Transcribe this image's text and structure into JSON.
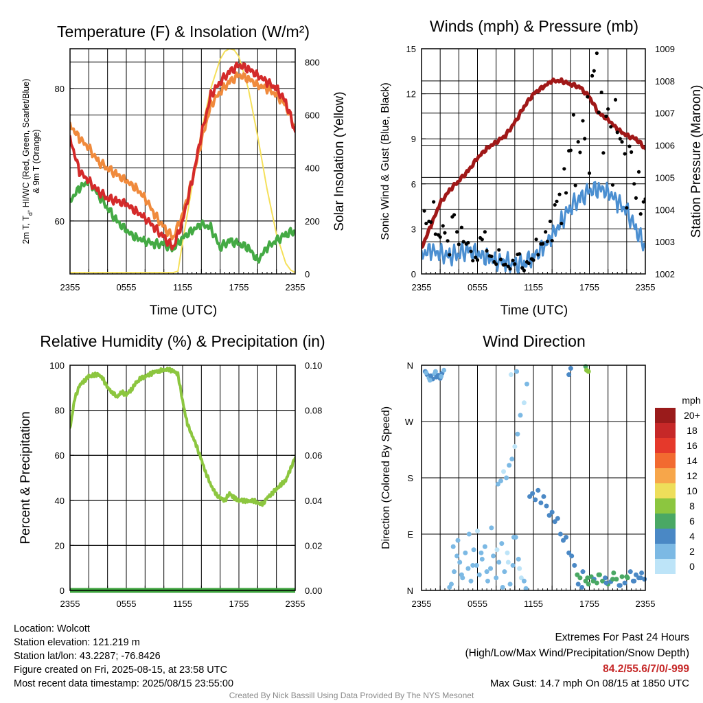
{
  "x_tick_labels": [
    "2355",
    "0555",
    "1155",
    "1755",
    "2355"
  ],
  "chart_data": [
    {
      "type": "line",
      "title": "Temperature (F) & Insolation (W/m²)",
      "xlabel": "Time (UTC)",
      "ylabel": "2m T, Td, HI/WC (Red, Green, Scarlet/Blue) & 9m T (Orange)",
      "ylabel_line1": "2m T, T",
      "ylabel_sub": "d",
      "ylabel_line1_rest": ", HI/WC (Red, Green, Scarlet/Blue)",
      "ylabel_line2": "& 9m T (Orange)",
      "y2label": "Solar Insolation (Yellow)",
      "x_range_hours": [
        0,
        24
      ],
      "ylim": [
        52,
        86
      ],
      "y_ticks": [
        60,
        70,
        80
      ],
      "y_tick_labels": [
        "60",
        "",
        "80"
      ],
      "y2lim": [
        0,
        850
      ],
      "y2_ticks": [
        0,
        200,
        400,
        600,
        800
      ],
      "series": [
        {
          "color": "#f08a3c",
          "axis": "left",
          "x": [
            0,
            1,
            2,
            3,
            4,
            5,
            6,
            7,
            8,
            9,
            10,
            11,
            12,
            13,
            14,
            15,
            16,
            17,
            18,
            19,
            20,
            21,
            22,
            23,
            24
          ],
          "values": [
            74.5,
            72.5,
            71,
            69,
            68,
            67,
            66,
            65,
            63.5,
            61,
            59,
            57.5,
            61,
            66,
            72,
            77.5,
            79.5,
            81,
            82,
            81.5,
            80.5,
            80,
            79,
            77.5,
            74
          ]
        },
        {
          "color": "#d42a2a",
          "axis": "left",
          "x": [
            0,
            1,
            2,
            3,
            4,
            5,
            6,
            7,
            8,
            9,
            10,
            11,
            12,
            13,
            14,
            15,
            16,
            17,
            18,
            19,
            20,
            21,
            22,
            23,
            24
          ],
          "values": [
            72.5,
            67.5,
            66,
            64.5,
            63.5,
            63,
            62.5,
            61.5,
            60.5,
            59,
            57.5,
            56,
            60,
            66,
            73,
            79,
            81,
            82.5,
            83.5,
            83,
            82,
            81,
            80,
            78,
            73.5
          ]
        },
        {
          "color": "#44aa44",
          "axis": "left",
          "x": [
            0,
            1,
            2,
            3,
            4,
            5,
            6,
            7,
            8,
            9,
            10,
            11,
            12,
            13,
            14,
            15,
            16,
            17,
            18,
            19,
            20,
            21,
            22,
            23,
            24
          ],
          "values": [
            63,
            65,
            66,
            64,
            62,
            60,
            58.5,
            57.5,
            57,
            56.5,
            56.5,
            55.8,
            57.5,
            58.5,
            59.5,
            59,
            56,
            57,
            56.5,
            56,
            54,
            56,
            57,
            58,
            58.5
          ]
        },
        {
          "color": "#f5e05a",
          "axis": "right",
          "x": [
            0,
            11,
            11.5,
            12,
            13,
            14,
            15,
            16,
            16.5,
            17,
            17.5,
            18,
            19,
            20,
            21,
            22,
            23,
            23.5,
            24
          ],
          "values": [
            5,
            5,
            10,
            120,
            330,
            540,
            700,
            810,
            840,
            850,
            845,
            820,
            700,
            520,
            320,
            150,
            40,
            15,
            5
          ]
        }
      ]
    },
    {
      "type": "line",
      "title": "Winds (mph) & Pressure (mb)",
      "xlabel": "Time (UTC)",
      "ylabel": "Sonic Wind & Gust (Blue, Black)",
      "y2label": "Station Pressure (Maroon)",
      "x_range_hours": [
        0,
        24
      ],
      "ylim": [
        0,
        15
      ],
      "y_ticks": [
        0,
        3,
        6,
        9,
        12,
        15
      ],
      "y2lim": [
        1002,
        1009
      ],
      "y2_ticks": [
        1002,
        1003,
        1004,
        1005,
        1006,
        1007,
        1008,
        1009
      ],
      "series": [
        {
          "color": "#4b8fd1",
          "axis": "left",
          "x": [
            0,
            1,
            2,
            3,
            4,
            5,
            6,
            7,
            8,
            9,
            10,
            11,
            12,
            13,
            14,
            15,
            16,
            17,
            18,
            19,
            20,
            21,
            22,
            23,
            24
          ],
          "values": [
            1.3,
            1.6,
            1.3,
            1.2,
            1.4,
            1.6,
            1.3,
            1.1,
            0.9,
            0.8,
            0.6,
            0.7,
            1.2,
            1.7,
            2.5,
            3.5,
            4.5,
            5.0,
            5.5,
            5.7,
            5.5,
            4.8,
            4.2,
            3.0,
            1.8
          ]
        },
        {
          "color": "#a01818",
          "axis": "right",
          "x": [
            0,
            1,
            2,
            3,
            4,
            5,
            6,
            7,
            8,
            9,
            10,
            11,
            12,
            13,
            14,
            15,
            16,
            17,
            18,
            19,
            20,
            21,
            22,
            23,
            24
          ],
          "values": [
            1002.8,
            1003.5,
            1004.2,
            1004.6,
            1004.9,
            1005.2,
            1005.6,
            1005.9,
            1006.1,
            1006.3,
            1006.7,
            1007.2,
            1007.6,
            1007.8,
            1008.0,
            1008.0,
            1007.9,
            1007.8,
            1007.5,
            1007.0,
            1006.8,
            1006.5,
            1006.3,
            1006.2,
            1005.9
          ]
        },
        {
          "name": "gust",
          "style": "dots",
          "color": "#000000",
          "axis": "left",
          "x": [
            0.3,
            0.8,
            1.3,
            1.8,
            2.3,
            2.8,
            3.3,
            3.8,
            4.3,
            4.8,
            5.3,
            5.8,
            6.3,
            6.8,
            7.3,
            7.8,
            8.3,
            8.8,
            9.3,
            9.8,
            10.3,
            10.8,
            11.3,
            11.8,
            12.3,
            12.8,
            13.3,
            13.8,
            14.3,
            14.8,
            15.3,
            15.8,
            16.3,
            16.8,
            17.3,
            17.8,
            18.3,
            18.8,
            19.3,
            19.8,
            20.3,
            20.8,
            21.3,
            21.8,
            22.3,
            22.8,
            23.3,
            23.8
          ],
          "values": [
            4.2,
            3.5,
            4.8,
            2.6,
            3.2,
            2.2,
            3.8,
            2.8,
            3.1,
            2.0,
            1.5,
            1.1,
            2.4,
            2.8,
            1.2,
            0.8,
            1.6,
            0.6,
            0.5,
            0.9,
            1.3,
            0.4,
            0.8,
            1.0,
            2.3,
            2.0,
            2.8,
            3.5,
            4.6,
            5.3,
            7.0,
            8.2,
            10.6,
            8.8,
            10.2,
            11.8,
            13.2,
            14.7,
            12.1,
            10.5,
            9.8,
            11.6,
            9.0,
            8.0,
            8.5,
            6.0,
            6.8,
            4.8
          ]
        }
      ]
    },
    {
      "type": "line",
      "title": "Relative Humidity (%) & Precipitation (in)",
      "xlabel": "",
      "ylabel": "Percent & Precipitation",
      "x_range_hours": [
        0,
        24
      ],
      "ylim": [
        0,
        100
      ],
      "y_ticks": [
        0,
        20,
        40,
        60,
        80,
        100
      ],
      "y2lim": [
        0,
        0.1
      ],
      "y2_ticks": [
        "0.00",
        "0.02",
        "0.04",
        "0.06",
        "0.08",
        "0.10"
      ],
      "series": [
        {
          "color": "#8cc63f",
          "axis": "left",
          "x": [
            0,
            0.5,
            1,
            1.5,
            2,
            2.5,
            3,
            3.5,
            4,
            4.5,
            5,
            5.5,
            6,
            6.5,
            7,
            7.5,
            8,
            8.5,
            9,
            9.5,
            10,
            10.5,
            11,
            11.5,
            12,
            12.5,
            13,
            13.5,
            14,
            14.5,
            15,
            15.5,
            16,
            16.5,
            17,
            17.5,
            18,
            18.5,
            19,
            19.5,
            20,
            20.5,
            21,
            21.5,
            22,
            22.5,
            23,
            23.5,
            24
          ],
          "values": [
            72,
            85,
            91,
            93,
            95,
            95.5,
            96,
            94,
            90,
            88,
            86,
            88,
            87,
            89,
            92,
            94,
            95,
            96,
            97,
            97.5,
            98,
            98,
            97.5,
            96,
            84,
            74,
            69,
            64,
            58,
            52,
            47,
            43,
            41,
            40,
            43,
            41,
            40,
            40,
            39.5,
            40,
            39,
            38,
            41,
            43,
            45,
            47,
            49,
            54,
            59
          ]
        },
        {
          "color": "#3da33d",
          "axis": "right",
          "width": 7,
          "x": [
            0,
            24
          ],
          "values": [
            0,
            0
          ]
        }
      ]
    },
    {
      "type": "scatter",
      "title": "Wind Direction",
      "ylabel": "Direction (Colored By Speed)",
      "x_range_hours": [
        0,
        24
      ],
      "y_ticks": [
        "N",
        "E",
        "S",
        "W",
        "N"
      ],
      "ylim_deg": [
        0,
        360
      ],
      "colorbar": {
        "unit": "mph",
        "labels": [
          "20+",
          "18",
          "16",
          "14",
          "12",
          "10",
          "8",
          "6",
          "4",
          "2",
          "0"
        ],
        "colors": [
          "#9a1b1b",
          "#c62828",
          "#e5392b",
          "#f26a30",
          "#f7a64a",
          "#eede5a",
          "#8cc63f",
          "#4aa864",
          "#4a88c5",
          "#7cb9e4",
          "#bde4f8"
        ]
      },
      "points": {
        "x": [
          0.4,
          0.6,
          0.8,
          1.0,
          1.2,
          1.4,
          1.6,
          1.8,
          2.0,
          2.2,
          2.4,
          0.5,
          0.9,
          1.5,
          2.1,
          3.2,
          3.5,
          3.8,
          4.1,
          4.4,
          4.7,
          5.0,
          5.3,
          5.6,
          5.9,
          6.2,
          6.5,
          6.8,
          7.1,
          7.4,
          7.7,
          8.0,
          8.3,
          8.6,
          8.9,
          9.2,
          9.5,
          9.8,
          10.1,
          10.4,
          10.7,
          11.0,
          3.0,
          3.4,
          3.9,
          4.3,
          5.1,
          5.5,
          6.0,
          6.4,
          7.0,
          7.5,
          8.1,
          8.7,
          9.3,
          9.9,
          10.5,
          11.2,
          8.2,
          8.5,
          8.8,
          9.1,
          9.4,
          9.7,
          10.0,
          10.3,
          10.6,
          11.0,
          11.3,
          10.2,
          9.6,
          11.6,
          11.9,
          12.2,
          12.5,
          12.8,
          13.1,
          13.4,
          13.7,
          14.0,
          14.3,
          14.6,
          14.9,
          15.2,
          15.5,
          15.8,
          16.1,
          16.4,
          16.7,
          17.0,
          17.3,
          17.6,
          17.9,
          18.2,
          18.5,
          18.8,
          19.1,
          19.4,
          19.7,
          20.0,
          20.3,
          20.6,
          20.9,
          21.2,
          21.5,
          21.8,
          22.1,
          22.4,
          22.7,
          23.0,
          23.3,
          23.6,
          23.9,
          16.8,
          17.2,
          17.8,
          18.4,
          19.0,
          19.8,
          20.5,
          21.3,
          22.0,
          22.8,
          23.5,
          15.8,
          16.0,
          17.6,
          17.9,
          17.7
        ],
        "dir": [
          350,
          345,
          340,
          343,
          338,
          346,
          341,
          344,
          339,
          347,
          352,
          348,
          336,
          350,
          342,
          10,
          30,
          55,
          45,
          20,
          60,
          35,
          15,
          65,
          40,
          25,
          50,
          70,
          15,
          35,
          55,
          20,
          45,
          75,
          30,
          60,
          10,
          40,
          85,
          50,
          20,
          15,
          5,
          70,
          80,
          25,
          90,
          40,
          95,
          60,
          30,
          100,
          65,
          5,
          45,
          85,
          35,
          3,
          170,
          175,
          190,
          180,
          200,
          210,
          230,
          250,
          280,
          300,
          330,
          350,
          345,
          150,
          155,
          145,
          160,
          140,
          150,
          135,
          120,
          125,
          110,
          115,
          90,
          80,
          85,
          60,
          55,
          40,
          25,
          20,
          30,
          15,
          10,
          22,
          18,
          12,
          25,
          15,
          20,
          10,
          14,
          28,
          18,
          8,
          22,
          12,
          20,
          30,
          15,
          25,
          20,
          28,
          18,
          10,
          5,
          20,
          15,
          25,
          12,
          18,
          8,
          22,
          15,
          20,
          345,
          355,
          358,
          350,
          352
        ],
        "speed": [
          3,
          3,
          2,
          3,
          3,
          2,
          3,
          4,
          3,
          3,
          2,
          1,
          2,
          1,
          2,
          1,
          2,
          1,
          2,
          1,
          1,
          2,
          1,
          1,
          2,
          1,
          1,
          2,
          1,
          1,
          1,
          2,
          1,
          1,
          1,
          0,
          1,
          1,
          1,
          1,
          0,
          1,
          1,
          1,
          1,
          2,
          1,
          1,
          0,
          1,
          1,
          1,
          0,
          1,
          0,
          1,
          0,
          1,
          1,
          1,
          0,
          1,
          1,
          1,
          0,
          1,
          1,
          0,
          1,
          1,
          0,
          3,
          3,
          4,
          3,
          4,
          3,
          3,
          4,
          4,
          3,
          4,
          4,
          4,
          3,
          4,
          4,
          4,
          5,
          6,
          4,
          5,
          6,
          5,
          4,
          5,
          6,
          5,
          4,
          5,
          4,
          5,
          6,
          4,
          5,
          4,
          5,
          3,
          4,
          3,
          4,
          3,
          3,
          4,
          4,
          6,
          5,
          6,
          4,
          5,
          4,
          5,
          4,
          3,
          4,
          4,
          6,
          7,
          7
        ]
      }
    }
  ],
  "footer_left": {
    "location": "Location: Wolcott",
    "elevation": "Station elevation: 121.219 m",
    "latlon": "Station lat/lon: 43.2287; -76.8426",
    "created": "Figure created on Fri, 2025-08-15, at 23:58 UTC",
    "recent": "Most recent data timestamp: 2025/08/15 23:55:00"
  },
  "footer_right": {
    "extremes_title": "Extremes For Past 24 Hours",
    "extremes_legend": "(High/Low/Max Wind/Precipitation/Snow Depth)",
    "extremes_values": "84.2/55.6/7/0/-999",
    "max_gust": "Max Gust: 14.7 mph On 08/15 at 1850 UTC"
  },
  "credit": "Created By Nick Bassill Using Data Provided By The NYS Mesonet"
}
